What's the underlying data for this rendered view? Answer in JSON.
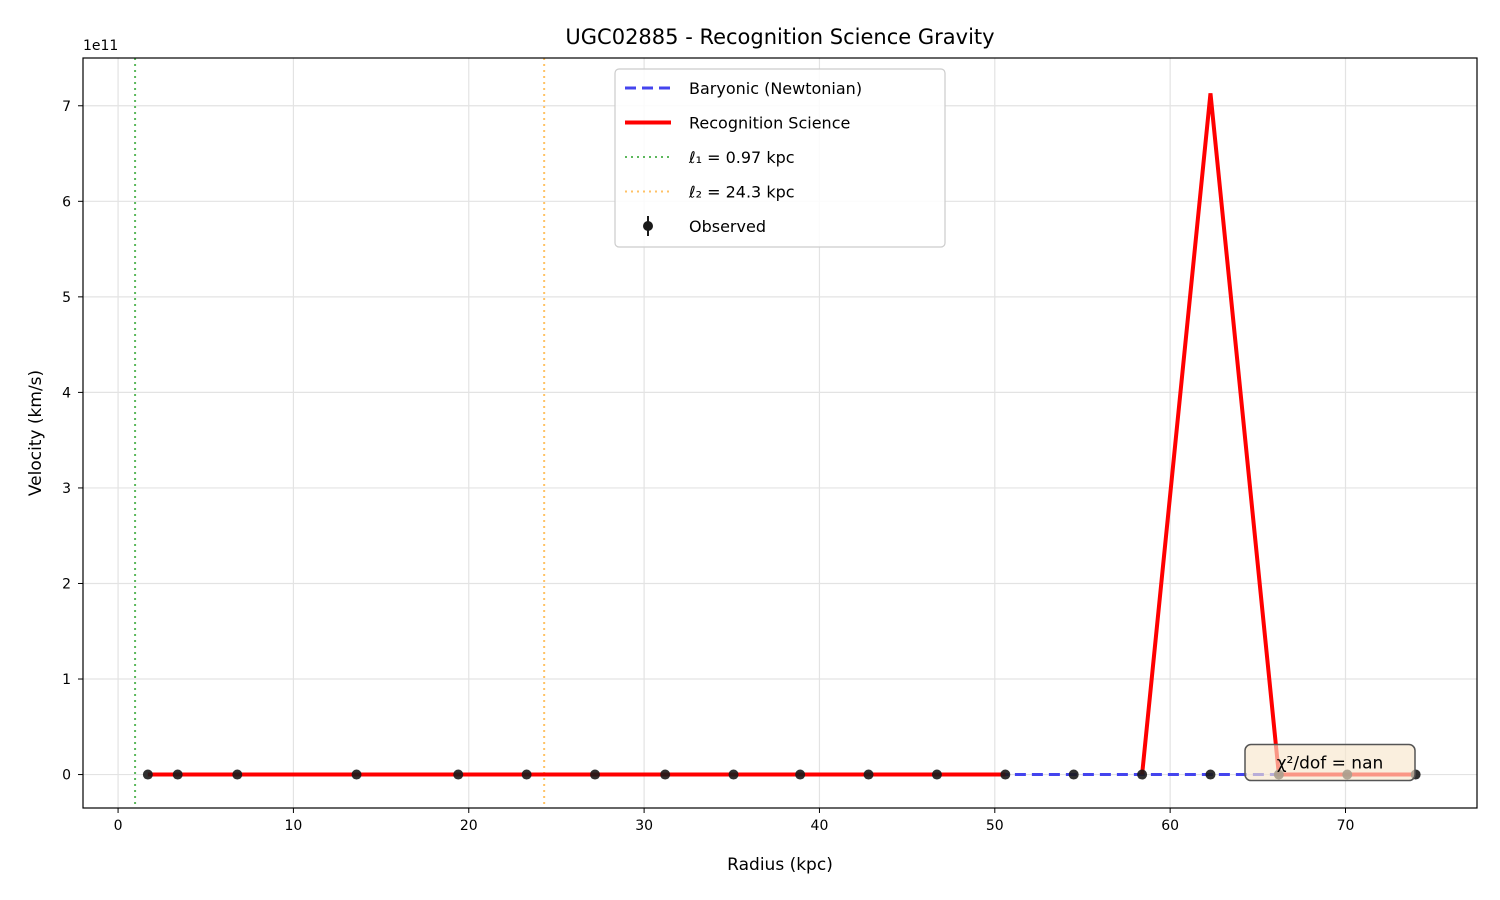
{
  "chart_data": {
    "type": "line",
    "title": "UGC02885 - Recognition Science Gravity",
    "xlabel": "Radius (kpc)",
    "ylabel": "Velocity (km/s)",
    "y_offset_label": "1e11",
    "y_scale_exponent": 11,
    "xlim": [
      -2,
      77.5
    ],
    "ylim": [
      -0.35,
      7.5
    ],
    "x_ticks": [
      0,
      10,
      20,
      30,
      40,
      50,
      60,
      70
    ],
    "y_ticks": [
      0,
      1,
      2,
      3,
      4,
      5,
      6,
      7
    ],
    "grid": true,
    "legend_location": "upper center",
    "series": [
      {
        "name": "Baryonic (Newtonian)",
        "style": "dashed",
        "color": "#4444ee",
        "x": [
          1.7,
          3.4,
          6.8,
          13.6,
          19.4,
          23.3,
          27.2,
          31.2,
          35.1,
          38.9,
          42.8,
          46.7,
          50.6,
          54.5,
          58.4,
          62.3,
          66.2,
          70.1,
          74.0
        ],
        "values": [
          0,
          0,
          0,
          0,
          0,
          0,
          0,
          0,
          0,
          0,
          0,
          0,
          0,
          0,
          0,
          0,
          0,
          0,
          0
        ]
      },
      {
        "name": "Recognition Science",
        "style": "solid",
        "color": "#ff0000",
        "x": [
          1.7,
          3.4,
          6.8,
          13.6,
          19.4,
          23.3,
          27.2,
          31.2,
          35.1,
          38.9,
          42.8,
          46.7,
          50.6,
          54.5,
          58.4,
          62.3,
          66.2,
          70.1,
          74.0
        ],
        "values": [
          0,
          0,
          0,
          0,
          0,
          0,
          0,
          0,
          0,
          0,
          0,
          0,
          0,
          null,
          0,
          7.13,
          0,
          0,
          0
        ]
      },
      {
        "name": "Observed",
        "style": "errorbar-points",
        "color": "#1a1a1a",
        "x": [
          1.7,
          3.4,
          6.8,
          13.6,
          19.4,
          23.3,
          27.2,
          31.2,
          35.1,
          38.9,
          42.8,
          46.7,
          50.6,
          54.5,
          58.4,
          62.3,
          66.2,
          70.1,
          74.0
        ],
        "values": [
          0,
          0,
          0,
          0,
          0,
          0,
          0,
          0,
          0,
          0,
          0,
          0,
          0,
          0,
          0,
          0,
          0,
          0,
          0
        ]
      }
    ],
    "vlines": [
      {
        "name": "ℓ₁ = 0.97 kpc",
        "x": 0.97,
        "style": "dotted",
        "color": "#5cb85c"
      },
      {
        "name": "ℓ₂ = 24.3 kpc",
        "x": 24.3,
        "style": "dotted",
        "color": "#ffc266"
      }
    ],
    "annotation": {
      "text": "χ²/dof = nan",
      "position": "bottom-right",
      "box_fill": "#f8e6cc",
      "box_edge": "#555555"
    }
  }
}
